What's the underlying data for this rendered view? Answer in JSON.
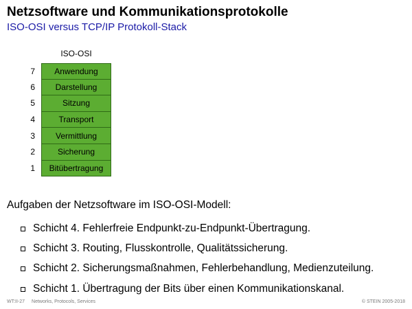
{
  "slide": {
    "title": "Netzsoftware und Kommunikationsprotokolle",
    "subtitle": "ISO-OSI versus TCP/IP Protokoll-Stack"
  },
  "osi_stack": {
    "caption": "ISO-OSI",
    "fill_color": "#5cad32",
    "border_color": "#2f6a16",
    "layers": [
      {
        "number": "7",
        "name": "Anwendung"
      },
      {
        "number": "6",
        "name": "Darstellung"
      },
      {
        "number": "5",
        "name": "Sitzung"
      },
      {
        "number": "4",
        "name": "Transport"
      },
      {
        "number": "3",
        "name": "Vermittlung"
      },
      {
        "number": "2",
        "name": "Sicherung"
      },
      {
        "number": "1",
        "name": "Bitübertragung"
      }
    ]
  },
  "tasks": {
    "heading": "Aufgaben der Netzsoftware im ISO-OSI-Modell:",
    "items": [
      "Schicht 4. Fehlerfreie Endpunkt-zu-Endpunkt-Übertragung.",
      "Schicht 3. Routing, Flusskontrolle, Qualitätssicherung.",
      "Schicht 2. Sicherungsmaßnahmen, Fehlerbehandlung, Medienzuteilung.",
      "Schicht 1. Übertragung der Bits über einen Kommunikationskanal."
    ]
  },
  "footer": {
    "page_ref": "WT:II-27",
    "section": "Networks, Protocols, Services",
    "copyright": "© STEIN 2005-2018"
  }
}
